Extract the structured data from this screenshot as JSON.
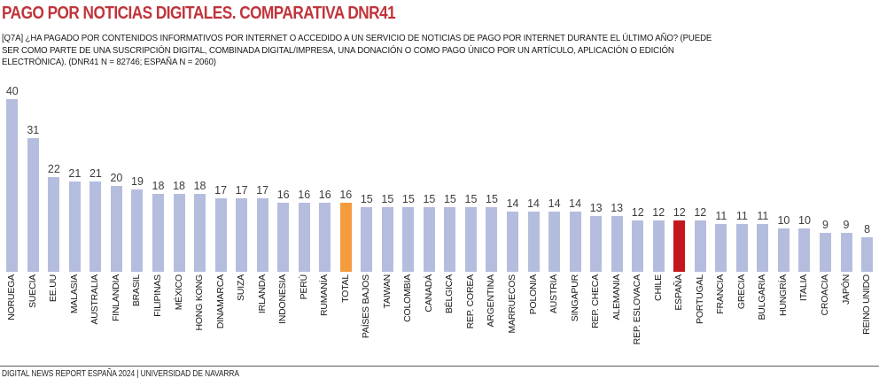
{
  "header": {
    "title": "PAGO POR NOTICIAS DIGITALES. COMPARATIVA DNR41",
    "subtitle_lines": [
      "[Q7A] ¿HA PAGADO POR CONTENIDOS INFORMATIVOS POR INTERNET O ACCEDIDO A UN SERVICIO DE NOTICIAS DE PAGO POR INTERNET DURANTE EL ÚLTIMO AÑO? (PUEDE",
      "SER COMO PARTE DE UNA SUSCRIPCIÓN DIGITAL, COMBINADA DIGITAL/IMPRESA, UNA DONACIÓN O COMO PAGO ÚNICO POR UN ARTÍCULO, APLICACIÓN O EDICIÓN",
      "ELECTRÓNICA). (DNR41 N = 82746; ESPAÑA N = 2060)"
    ]
  },
  "chart_data": {
    "type": "bar",
    "title": "PAGO POR NOTICIAS DIGITALES. COMPARATIVA DNR41",
    "xlabel": "",
    "ylabel": "",
    "ylim": [
      0,
      40
    ],
    "grid": false,
    "legend": false,
    "value_labels_shown": true,
    "categories": [
      "NORUEGA",
      "SUECIA",
      "EE.UU",
      "MALASIA",
      "AUSTRALIA",
      "FINLANDIA",
      "BRASIL",
      "FILIPINAS",
      "MÉXICO",
      "HONG KONG",
      "DINAMARCA",
      "SUIZA",
      "IRLANDA",
      "INDONESIA",
      "PERÚ",
      "RUMANÍA",
      "TOTAL",
      "PAÍSES BAJOS",
      "TAIWAN",
      "COLOMBIA",
      "CANADÁ",
      "BÉLGICA",
      "REP. COREA",
      "ARGENTINA",
      "MARRUECOS",
      "POLONIA",
      "AUSTRIA",
      "SINGAPUR",
      "REP. CHECA",
      "ALEMANIA",
      "REP. ESLOVACA",
      "CHILE",
      "ESPAÑA",
      "PORTUGAL",
      "FRANCIA",
      "GRECIA",
      "BULGARIA",
      "HUNGRÍA",
      "ITALIA",
      "CROACIA",
      "JAPÓN",
      "REINO UNIDO"
    ],
    "values": [
      40,
      31,
      22,
      21,
      21,
      20,
      19,
      18,
      18,
      18,
      17,
      17,
      17,
      16,
      16,
      16,
      16,
      15,
      15,
      15,
      15,
      15,
      15,
      15,
      14,
      14,
      14,
      14,
      13,
      13,
      12,
      12,
      12,
      12,
      11,
      11,
      11,
      10,
      10,
      9,
      9,
      8
    ],
    "bar_colors": {
      "default": "#b5bdde",
      "TOTAL": "#f49b3e",
      "ESPAÑA": "#c4161c"
    }
  },
  "colors": {
    "title_accent": "#c0343b",
    "bar_default": "#b5bdde",
    "bar_total_highlight": "#f49b3e",
    "bar_espana_highlight": "#c4161c",
    "value_label": "#3d3d3d"
  },
  "footer": {
    "text": "DIGITAL NEWS REPORT ESPAÑA 2024 | UNIVERSIDAD DE NAVARRA"
  }
}
